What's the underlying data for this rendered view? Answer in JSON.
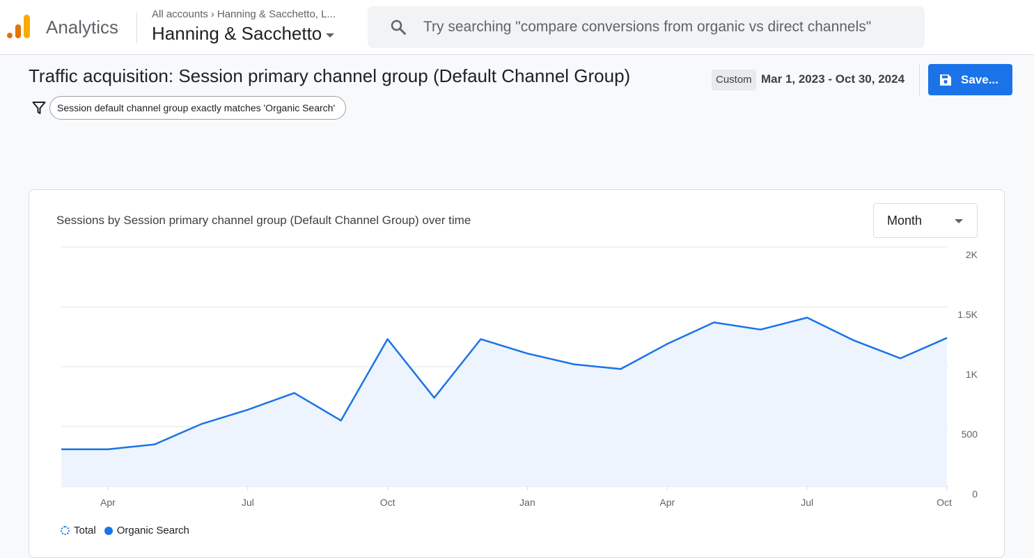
{
  "header": {
    "app_name": "Analytics",
    "breadcrumb_root": "All accounts",
    "breadcrumb_account": "Hanning & Sacchetto, L...",
    "account_name": "Hanning & Sacchetto",
    "search_placeholder": "Try searching \"compare conversions from organic vs direct channels\""
  },
  "report": {
    "title": "Traffic acquisition: Session primary channel group (Default Channel Group)",
    "filter": "Session default channel group exactly matches 'Organic Search'",
    "date_range_type": "Custom",
    "date_range": "Mar 1, 2023 - Oct 30, 2024",
    "save_label": "Save..."
  },
  "card": {
    "title": "Sessions by Session primary channel group (Default Channel Group) over time",
    "granularity": "Month"
  },
  "colors": {
    "accent": "#1a73e8",
    "line": "#1a73e8",
    "area": "#eef4fd"
  },
  "chart_data": {
    "type": "area",
    "x": [
      "2023-03",
      "2023-04",
      "2023-05",
      "2023-06",
      "2023-07",
      "2023-08",
      "2023-09",
      "2023-10",
      "2023-11",
      "2023-12",
      "2024-01",
      "2024-02",
      "2024-03",
      "2024-04",
      "2024-05",
      "2024-06",
      "2024-07",
      "2024-08",
      "2024-09",
      "2024-10"
    ],
    "x_tick_labels": [
      "Apr",
      "Jul",
      "Oct",
      "Jan",
      "Apr",
      "Jul",
      "Oct"
    ],
    "x_tick_positions": [
      "2023-04",
      "2023-07",
      "2023-10",
      "2024-01",
      "2024-04",
      "2024-07",
      "2024-10"
    ],
    "y_ticks": [
      "0",
      "500",
      "1K",
      "1.5K",
      "2K"
    ],
    "y_tick_values": [
      0,
      500,
      1000,
      1500,
      2000
    ],
    "ylim": [
      0,
      2000
    ],
    "grid": true,
    "legend_position": "bottom-left",
    "legend": [
      "Total",
      "Organic Search"
    ],
    "series": [
      {
        "name": "Organic Search",
        "values": [
          310,
          310,
          350,
          520,
          640,
          780,
          550,
          1230,
          740,
          1230,
          1110,
          1020,
          980,
          1190,
          1370,
          1310,
          1410,
          1220,
          1070,
          1240
        ]
      }
    ]
  }
}
